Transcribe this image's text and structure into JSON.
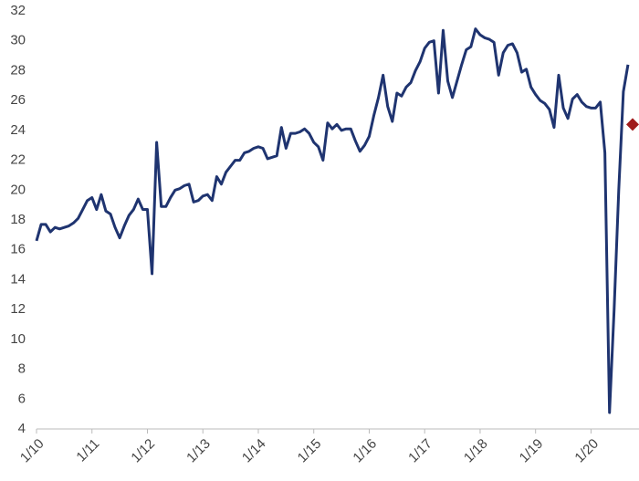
{
  "chart_data": {
    "type": "line",
    "categories": [
      "1/10",
      null,
      null,
      null,
      null,
      null,
      null,
      null,
      null,
      null,
      null,
      null,
      "1/11",
      null,
      null,
      null,
      null,
      null,
      null,
      null,
      null,
      null,
      null,
      null,
      "1/12",
      null,
      null,
      null,
      null,
      null,
      null,
      null,
      null,
      null,
      null,
      null,
      "1/13",
      null,
      null,
      null,
      null,
      null,
      null,
      null,
      null,
      null,
      null,
      null,
      "1/14",
      null,
      null,
      null,
      null,
      null,
      null,
      null,
      null,
      null,
      null,
      null,
      "1/15",
      null,
      null,
      null,
      null,
      null,
      null,
      null,
      null,
      null,
      null,
      null,
      "1/16",
      null,
      null,
      null,
      null,
      null,
      null,
      null,
      null,
      null,
      null,
      null,
      "1/17",
      null,
      null,
      null,
      null,
      null,
      null,
      null,
      null,
      null,
      null,
      null,
      "1/18",
      null,
      null,
      null,
      null,
      null,
      null,
      null,
      null,
      null,
      null,
      null,
      "1/19",
      null,
      null,
      null,
      null,
      null,
      null,
      null,
      null,
      null,
      null,
      null,
      "1/20",
      null,
      null,
      null,
      null,
      null,
      null,
      null,
      null,
      null
    ],
    "series": [
      {
        "color": "#1f3470",
        "marker": "line",
        "values": [
          16.6,
          17.7,
          17.7,
          17.2,
          17.5,
          17.4,
          17.5,
          17.6,
          17.8,
          18.1,
          18.7,
          19.3,
          19.5,
          18.7,
          19.7,
          18.6,
          18.4,
          17.5,
          16.8,
          17.6,
          18.3,
          18.7,
          19.4,
          18.7,
          18.7,
          14.4,
          23.2,
          18.9,
          18.9,
          19.5,
          20.0,
          20.1,
          20.3,
          20.4,
          19.2,
          19.3,
          19.6,
          19.7,
          19.3,
          20.9,
          20.4,
          21.2,
          21.6,
          22.0,
          22.0,
          22.5,
          22.6,
          22.8,
          22.9,
          22.8,
          22.1,
          22.2,
          22.3,
          24.2,
          22.8,
          23.8,
          23.8,
          23.9,
          24.1,
          23.8,
          23.2,
          22.9,
          22.0,
          24.5,
          24.1,
          24.4,
          24.0,
          24.1,
          24.1,
          23.3,
          22.6,
          23.0,
          23.6,
          25.0,
          26.2,
          27.7,
          25.6,
          24.6,
          26.5,
          26.3,
          26.9,
          27.2,
          28.0,
          28.6,
          29.5,
          29.9,
          30.0,
          26.5,
          30.7,
          27.3,
          26.2,
          27.3,
          28.4,
          29.4,
          29.6,
          30.8,
          30.4,
          30.2,
          30.1,
          29.9,
          27.7,
          29.2,
          29.7,
          29.8,
          29.2,
          27.9,
          28.1,
          26.9,
          26.4,
          26.0,
          25.8,
          25.4,
          24.2,
          27.7,
          25.5,
          24.8,
          26.1,
          26.4,
          25.9,
          25.6,
          25.5,
          25.5,
          25.9,
          22.5,
          5.1,
          12.0,
          20.0,
          26.6,
          28.4,
          null
        ]
      },
      {
        "color": "#a01c1c",
        "marker": "diamond",
        "values": [
          null,
          null,
          null,
          null,
          null,
          null,
          null,
          null,
          null,
          null,
          null,
          null,
          null,
          null,
          null,
          null,
          null,
          null,
          null,
          null,
          null,
          null,
          null,
          null,
          null,
          null,
          null,
          null,
          null,
          null,
          null,
          null,
          null,
          null,
          null,
          null,
          null,
          null,
          null,
          null,
          null,
          null,
          null,
          null,
          null,
          null,
          null,
          null,
          null,
          null,
          null,
          null,
          null,
          null,
          null,
          null,
          null,
          null,
          null,
          null,
          null,
          null,
          null,
          null,
          null,
          null,
          null,
          null,
          null,
          null,
          null,
          null,
          null,
          null,
          null,
          null,
          null,
          null,
          null,
          null,
          null,
          null,
          null,
          null,
          null,
          null,
          null,
          null,
          null,
          null,
          null,
          null,
          null,
          null,
          null,
          null,
          null,
          null,
          null,
          null,
          null,
          null,
          null,
          null,
          null,
          null,
          null,
          null,
          null,
          null,
          null,
          null,
          null,
          null,
          null,
          null,
          null,
          null,
          null,
          null,
          null,
          null,
          null,
          null,
          null,
          null,
          null,
          null,
          null,
          24.4
        ]
      }
    ],
    "ylim": [
      4,
      32
    ],
    "yticks": [
      4,
      6,
      8,
      10,
      12,
      14,
      16,
      18,
      20,
      22,
      24,
      26,
      28,
      30,
      32
    ],
    "grid": false
  }
}
